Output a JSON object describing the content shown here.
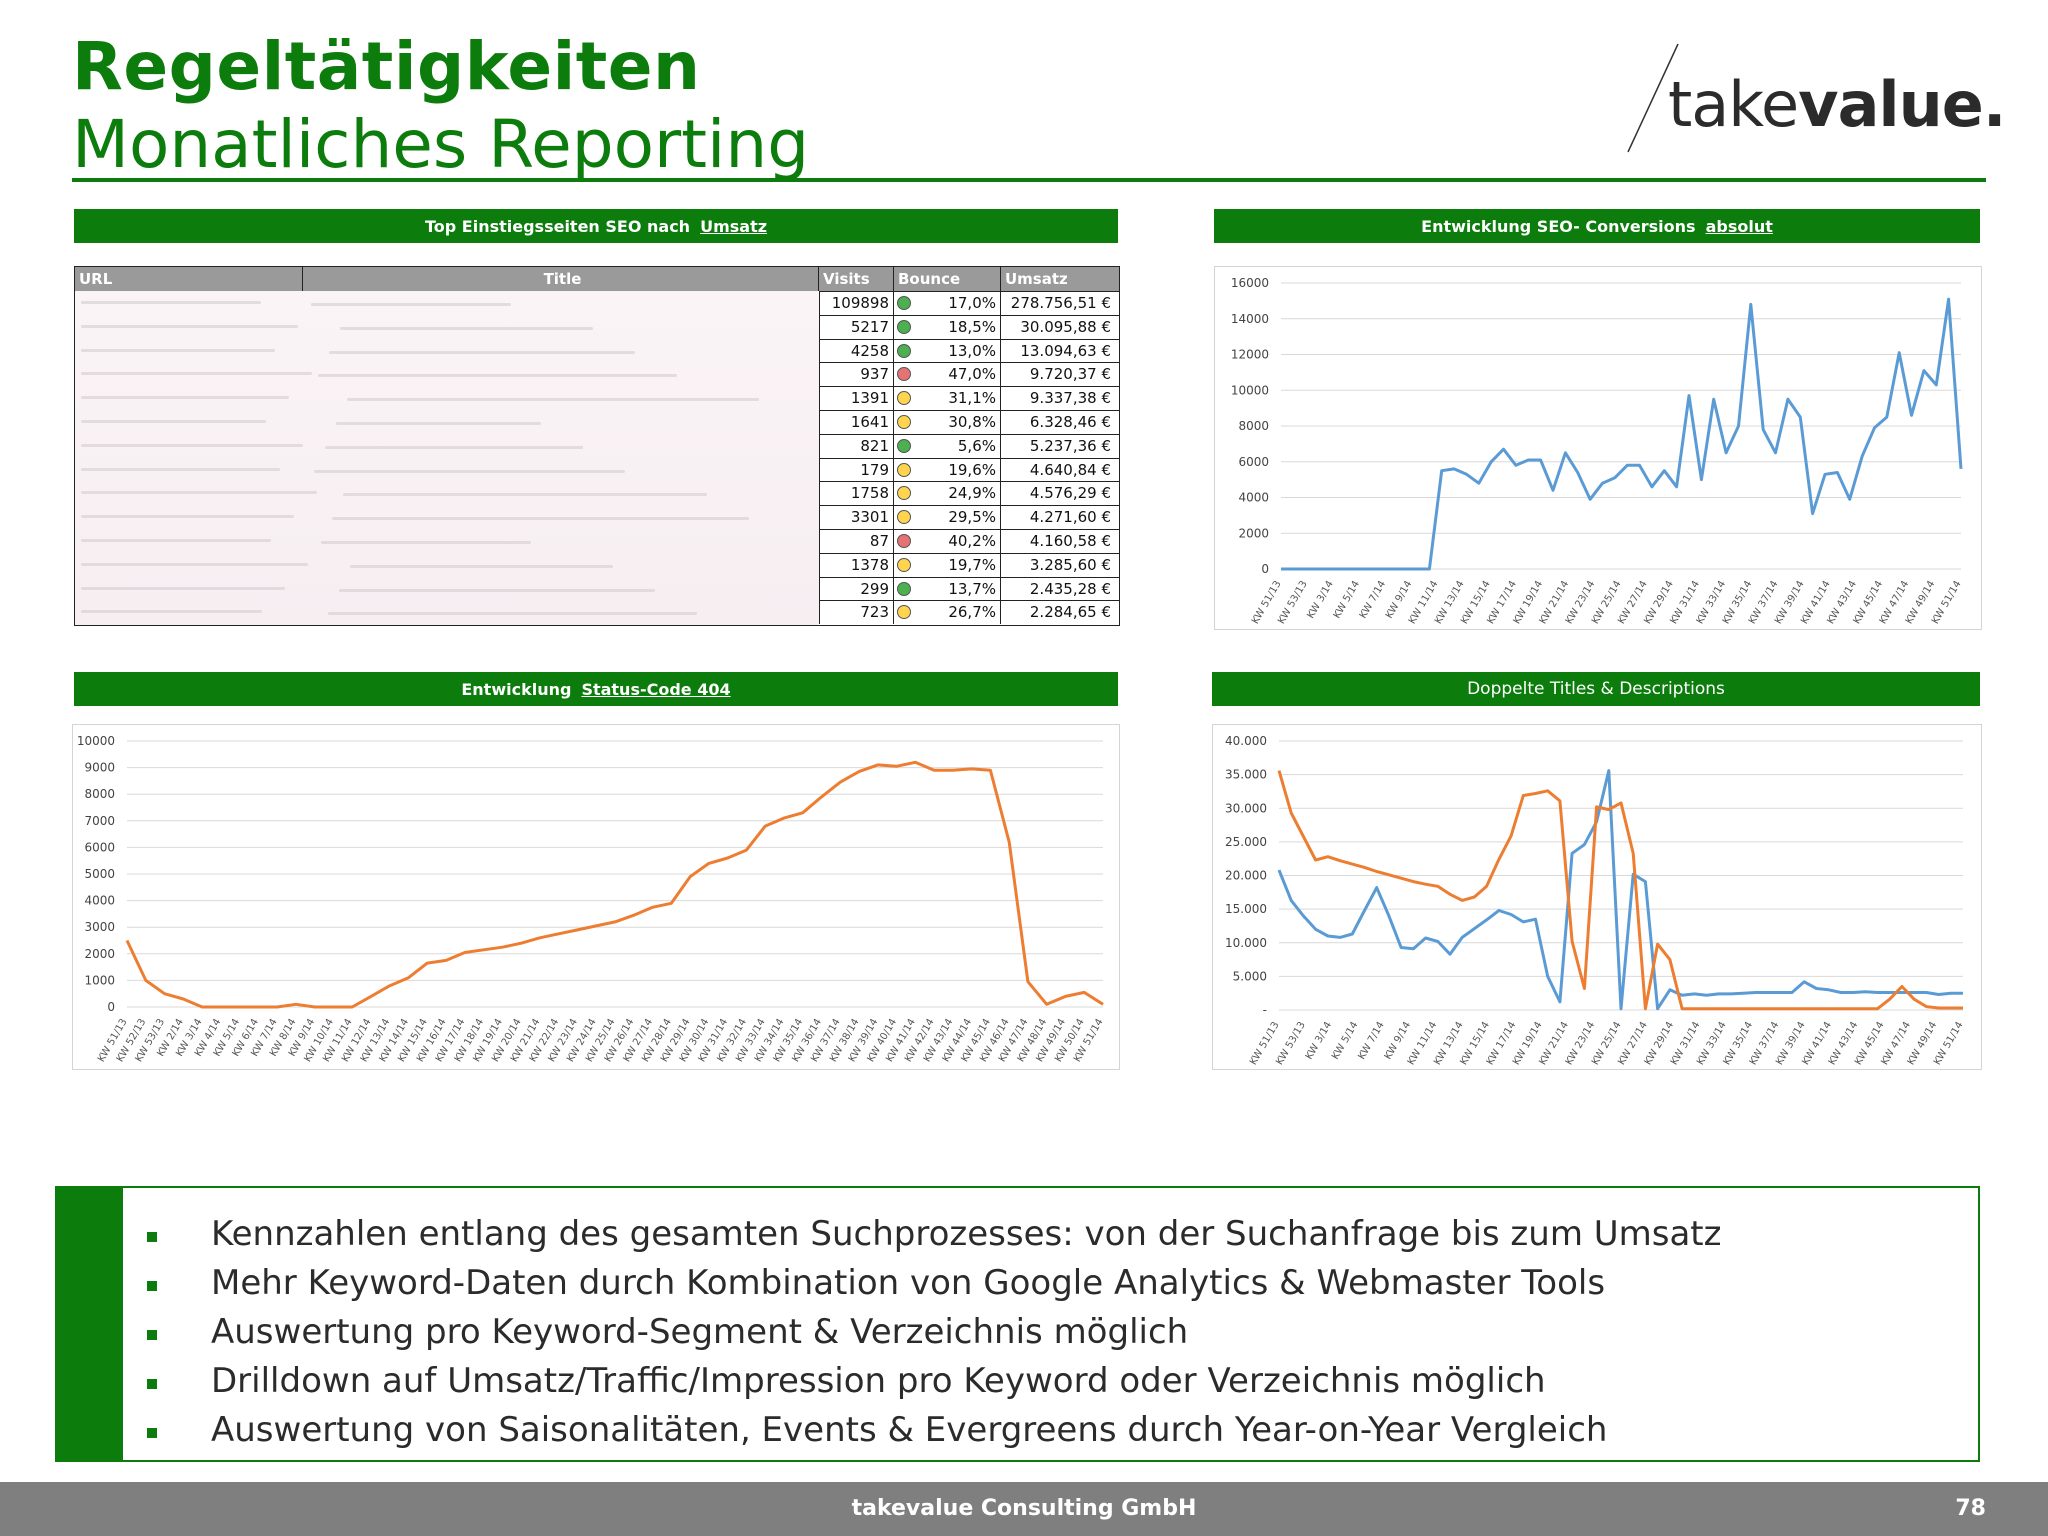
{
  "header": {
    "title": "Regeltätigkeiten",
    "subtitle": "Monatliches Reporting",
    "logo_prefix": "take",
    "logo_suffix": "value."
  },
  "table_panel": {
    "bar_label": "Top Einstiegsseiten SEO nach",
    "bar_link": "Umsatz",
    "columns": [
      "URL",
      "Title",
      "Visits",
      "Bounce Rate",
      "Umsatz"
    ],
    "rows": [
      {
        "visits": "109898",
        "status": "green",
        "bounce": "17,0%",
        "umsatz": "278.756,51 €"
      },
      {
        "visits": "5217",
        "status": "green",
        "bounce": "18,5%",
        "umsatz": "30.095,88 €"
      },
      {
        "visits": "4258",
        "status": "green",
        "bounce": "13,0%",
        "umsatz": "13.094,63 €"
      },
      {
        "visits": "937",
        "status": "red",
        "bounce": "47,0%",
        "umsatz": "9.720,37 €"
      },
      {
        "visits": "1391",
        "status": "yellow",
        "bounce": "31,1%",
        "umsatz": "9.337,38 €"
      },
      {
        "visits": "1641",
        "status": "yellow",
        "bounce": "30,8%",
        "umsatz": "6.328,46 €"
      },
      {
        "visits": "821",
        "status": "green",
        "bounce": "5,6%",
        "umsatz": "5.237,36 €"
      },
      {
        "visits": "179",
        "status": "yellow",
        "bounce": "19,6%",
        "umsatz": "4.640,84 €"
      },
      {
        "visits": "1758",
        "status": "yellow",
        "bounce": "24,9%",
        "umsatz": "4.576,29 €"
      },
      {
        "visits": "3301",
        "status": "yellow",
        "bounce": "29,5%",
        "umsatz": "4.271,60 €"
      },
      {
        "visits": "87",
        "status": "red",
        "bounce": "40,2%",
        "umsatz": "4.160,58 €"
      },
      {
        "visits": "1378",
        "status": "yellow",
        "bounce": "19,7%",
        "umsatz": "3.285,60 €"
      },
      {
        "visits": "299",
        "status": "green",
        "bounce": "13,7%",
        "umsatz": "2.435,28 €"
      },
      {
        "visits": "723",
        "status": "yellow",
        "bounce": "26,7%",
        "umsatz": "2.284,65 €"
      }
    ],
    "status_colors": {
      "green": "#4caf50",
      "yellow": "#ffd54f",
      "red": "#e57373"
    }
  },
  "conversions_panel": {
    "bar_label": "Entwicklung SEO- Conversions",
    "bar_link": "absolut"
  },
  "status404_panel": {
    "bar_label": "Entwicklung",
    "bar_link": "Status-Code 404"
  },
  "titles_panel": {
    "bar_label": "Doppelte Titles & Descriptions"
  },
  "chart_data": [
    {
      "type": "line",
      "ylim": [
        0,
        16000
      ],
      "yticks": [
        "0",
        "2000",
        "4000",
        "6000",
        "8000",
        "10000",
        "12000",
        "14000",
        "16000"
      ],
      "xticks": [
        "KW 51/13",
        "KW 53/13",
        "KW 3/14",
        "KW 5/14",
        "KW 7/14",
        "KW 9/14",
        "KW 11/14",
        "KW 13/14",
        "KW 15/14",
        "KW 17/14",
        "KW 19/14",
        "KW 21/14",
        "KW 23/14",
        "KW 25/14",
        "KW 27/14",
        "KW 29/14",
        "KW 31/14",
        "KW 33/14",
        "KW 35/14",
        "KW 37/14",
        "KW 39/14",
        "KW 41/14",
        "KW 43/14",
        "KW 45/14",
        "KW 47/14",
        "KW 49/14",
        "KW 51/14"
      ],
      "series": [
        {
          "color": "#5b9bd5",
          "values": [
            0,
            0,
            0,
            0,
            0,
            0,
            0,
            0,
            0,
            0,
            0,
            0,
            0,
            5500,
            5600,
            5300,
            4800,
            6000,
            6700,
            5800,
            6100,
            6100,
            4400,
            6500,
            5400,
            3900,
            4800,
            5100,
            5800,
            5800,
            4600,
            5500,
            4600,
            9700,
            5000,
            9500,
            6500,
            8000,
            14800,
            7800,
            6500,
            9500,
            8500,
            3100,
            5300,
            5400,
            3900,
            6300,
            7900,
            8500,
            12100,
            8600,
            11100,
            10300,
            15100,
            5600
          ]
        }
      ]
    },
    {
      "type": "line",
      "ylim": [
        0,
        10000
      ],
      "yticks": [
        "0",
        "1000",
        "2000",
        "3000",
        "4000",
        "5000",
        "6000",
        "7000",
        "8000",
        "9000",
        "10000"
      ],
      "xticks": [
        "KW 51/13",
        "KW 52/13",
        "KW 53/13",
        "KW 2/14",
        "KW 3/14",
        "KW 4/14",
        "KW 5/14",
        "KW 6/14",
        "KW 7/14",
        "KW 8/14",
        "KW 9/14",
        "KW 10/14",
        "KW 11/14",
        "KW 12/14",
        "KW 13/14",
        "KW 14/14",
        "KW 15/14",
        "KW 16/14",
        "KW 17/14",
        "KW 18/14",
        "KW 19/14",
        "KW 20/14",
        "KW 21/14",
        "KW 22/14",
        "KW 23/14",
        "KW 24/14",
        "KW 25/14",
        "KW 26/14",
        "KW 27/14",
        "KW 28/14",
        "KW 29/14",
        "KW 30/14",
        "KW 31/14",
        "KW 32/14",
        "KW 33/14",
        "KW 34/14",
        "KW 35/14",
        "KW 36/14",
        "KW 37/14",
        "KW 38/14",
        "KW 39/14",
        "KW 40/14",
        "KW 41/14",
        "KW 42/14",
        "KW 43/14",
        "KW 44/14",
        "KW 45/14",
        "KW 46/14",
        "KW 47/14",
        "KW 48/14",
        "KW 49/14",
        "KW 50/14",
        "KW 51/14"
      ],
      "series": [
        {
          "color": "#ed7d31",
          "values": [
            2500,
            1000,
            500,
            300,
            0,
            0,
            0,
            0,
            0,
            100,
            0,
            0,
            0,
            400,
            800,
            1100,
            1650,
            1750,
            2050,
            2150,
            2250,
            2400,
            2600,
            2750,
            2900,
            3050,
            3200,
            3450,
            3750,
            3900,
            4900,
            5400,
            5600,
            5900,
            6800,
            7100,
            7300,
            7900,
            8450,
            8850,
            9100,
            9050,
            9200,
            8900,
            8900,
            8950,
            8900,
            6200,
            950,
            100,
            400,
            550,
            100
          ]
        }
      ]
    },
    {
      "type": "line",
      "ylim": [
        0,
        40000
      ],
      "yticks": [
        "-",
        "5.000",
        "10.000",
        "15.000",
        "20.000",
        "25.000",
        "30.000",
        "35.000",
        "40.000"
      ],
      "xticks": [
        "KW 51/13",
        "KW 53/13",
        "KW 3/14",
        "KW 5/14",
        "KW 7/14",
        "KW 9/14",
        "KW 11/14",
        "KW 13/14",
        "KW 15/14",
        "KW 17/14",
        "KW 19/14",
        "KW 21/14",
        "KW 23/14",
        "KW 25/14",
        "KW 27/14",
        "KW 29/14",
        "KW 31/14",
        "KW 33/14",
        "KW 35/14",
        "KW 37/14",
        "KW 39/14",
        "KW 41/14",
        "KW 43/14",
        "KW 45/14",
        "KW 47/14",
        "KW 49/14",
        "KW 51/14"
      ],
      "series": [
        {
          "color": "#5b9bd5",
          "values": [
            20800,
            16300,
            14000,
            12000,
            11000,
            10800,
            11300,
            14800,
            18200,
            14000,
            9300,
            9100,
            10700,
            10200,
            8300,
            10800,
            12100,
            13400,
            14800,
            14200,
            13100,
            13500,
            5000,
            1200,
            23300,
            24600,
            28000,
            35600,
            200,
            20200,
            19100,
            200,
            3000,
            2200,
            2400,
            2200,
            2400,
            2400,
            2500,
            2600,
            2600,
            2600,
            2600,
            4200,
            3200,
            3000,
            2600,
            2600,
            2700,
            2600,
            2600,
            2600,
            2600,
            2600,
            2300,
            2500,
            2500
          ]
        },
        {
          "color": "#ed7d31",
          "values": [
            35600,
            29300,
            25800,
            22300,
            22800,
            22200,
            21700,
            21200,
            20600,
            20100,
            19600,
            19100,
            18700,
            18400,
            17200,
            16300,
            16800,
            18400,
            22400,
            25900,
            31900,
            32200,
            32600,
            31100,
            10200,
            3200,
            30200,
            29800,
            30800,
            23300,
            200,
            9800,
            7500,
            200,
            200,
            200,
            200,
            200,
            200,
            200,
            200,
            200,
            200,
            200,
            200,
            200,
            200,
            200,
            200,
            200,
            1600,
            3500,
            1600,
            500,
            300,
            300,
            300
          ]
        }
      ]
    }
  ],
  "bullets": [
    "Kennzahlen entlang des gesamten Suchprozesses: von der Suchanfrage bis zum Umsatz",
    "Mehr Keyword-Daten durch Kombination von Google Analytics & Webmaster Tools",
    "Auswertung pro Keyword-Segment  & Verzeichnis möglich",
    "Drilldown auf Umsatz/Traffic/Impression pro Keyword oder Verzeichnis möglich",
    "Auswertung von Saisonalitäten, Events & Evergreens durch Year-on-Year Vergleich"
  ],
  "footer": {
    "company": "takevalue Consulting GmbH",
    "page": "78"
  }
}
